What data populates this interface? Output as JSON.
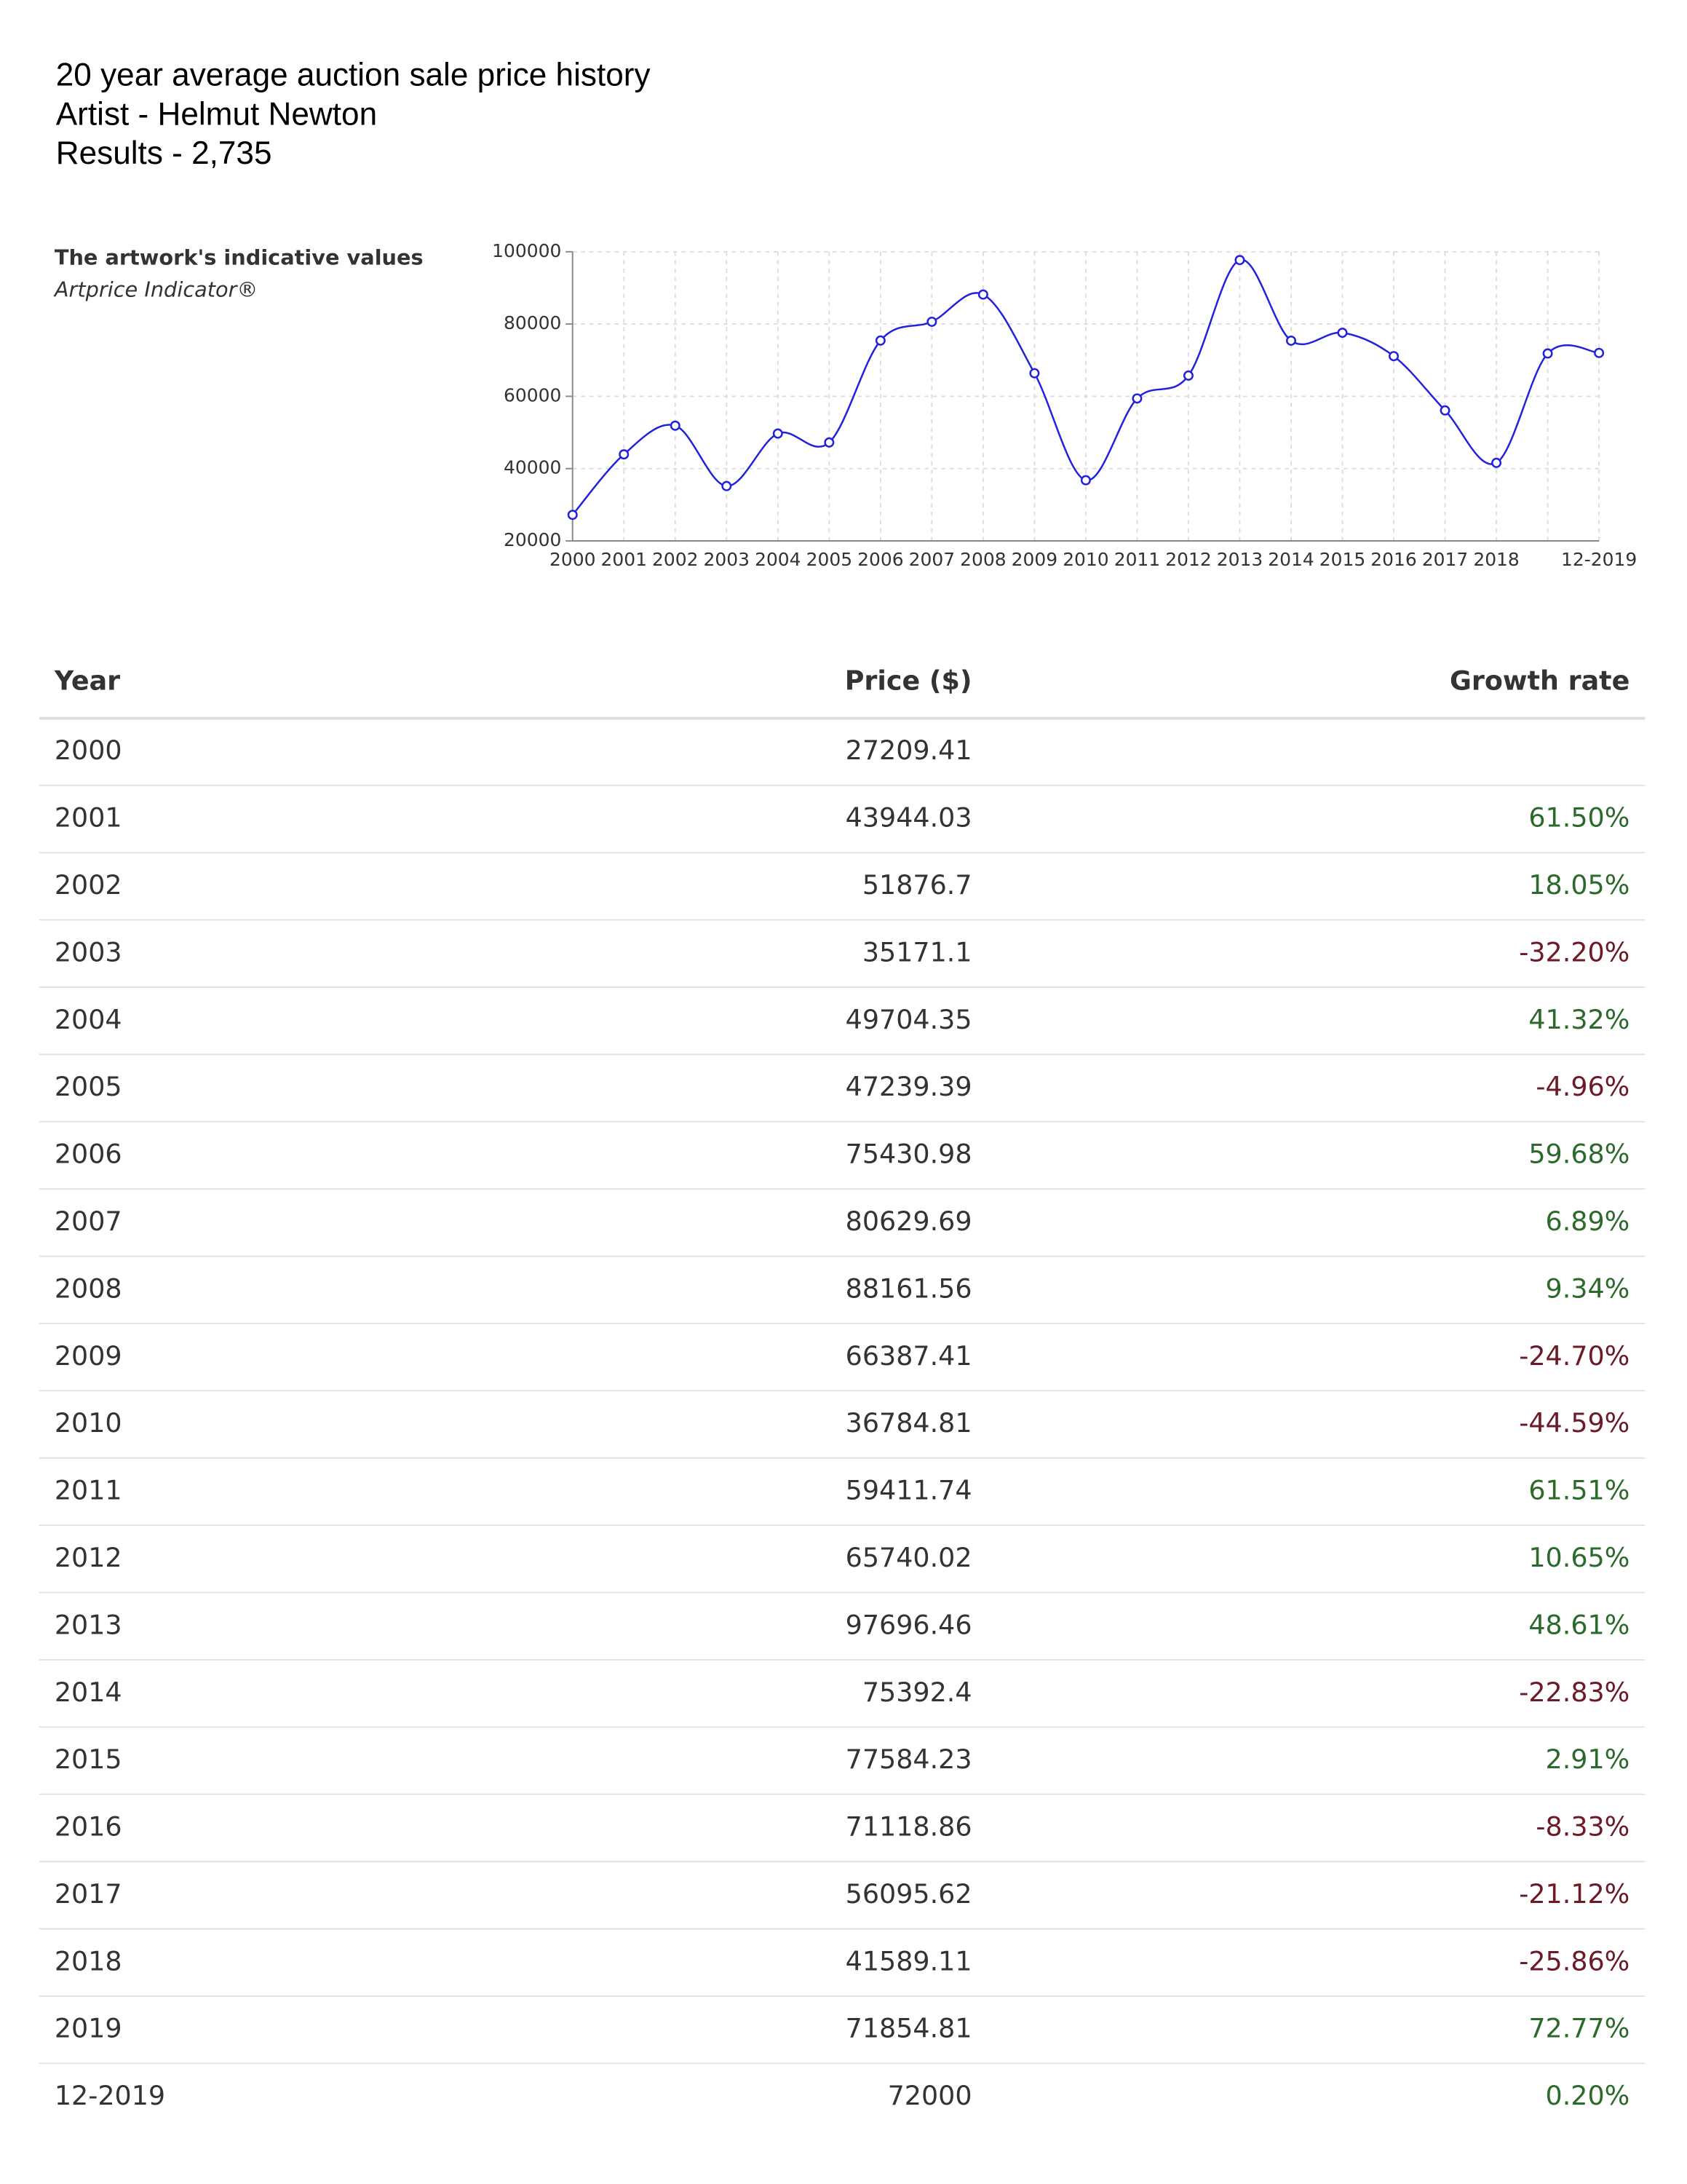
{
  "header": {
    "title": "20 year average auction sale price history",
    "artist": "Artist - Helmut Newton",
    "results": "Results - 2,735"
  },
  "chart_data": {
    "type": "line",
    "title": "The artwork's indicative values",
    "subtitle": "Artprice Indicator®",
    "categories": [
      "2000",
      "2001",
      "2002",
      "2003",
      "2004",
      "2005",
      "2006",
      "2007",
      "2008",
      "2009",
      "2010",
      "2011",
      "2012",
      "2013",
      "2014",
      "2015",
      "2016",
      "2017",
      "2018",
      null,
      "12-2019"
    ],
    "values": [
      27209.41,
      43944.03,
      51876.7,
      35171.1,
      49704.35,
      47239.39,
      75430.98,
      80629.69,
      88161.56,
      66387.41,
      36784.81,
      59411.74,
      65740.02,
      97696.46,
      75392.4,
      77584.23,
      71118.86,
      56095.62,
      41589.11,
      71854.81,
      72000
    ],
    "color": "#2222dd",
    "ylim": [
      20000,
      100000
    ],
    "yticks": [
      20000,
      40000,
      60000,
      80000,
      100000
    ],
    "grid": true
  },
  "table": {
    "columns": [
      "Year",
      "Price ($)",
      "Growth rate"
    ],
    "rows": [
      [
        "2000",
        "27209.41"
      ],
      [
        "2001",
        "43944.03",
        "61.50%"
      ],
      [
        "2002",
        "51876.7",
        "18.05%"
      ],
      [
        "2003",
        "35171.1",
        "-32.20%"
      ],
      [
        "2004",
        "49704.35",
        "41.32%"
      ],
      [
        "2005",
        "47239.39",
        "-4.96%"
      ],
      [
        "2006",
        "75430.98",
        "59.68%"
      ],
      [
        "2007",
        "80629.69",
        "6.89%"
      ],
      [
        "2008",
        "88161.56",
        "9.34%"
      ],
      [
        "2009",
        "66387.41",
        "-24.70%"
      ],
      [
        "2010",
        "36784.81",
        "-44.59%"
      ],
      [
        "2011",
        "59411.74",
        "61.51%"
      ],
      [
        "2012",
        "65740.02",
        "10.65%"
      ],
      [
        "2013",
        "97696.46",
        "48.61%"
      ],
      [
        "2014",
        "75392.4",
        "-22.83%"
      ],
      [
        "2015",
        "77584.23",
        "2.91%"
      ],
      [
        "2016",
        "71118.86",
        "-8.33%"
      ],
      [
        "2017",
        "56095.62",
        "-21.12%"
      ],
      [
        "2018",
        "41589.11",
        "-25.86%"
      ],
      [
        "2019",
        "71854.81",
        "72.77%"
      ],
      [
        "12-2019",
        "72000",
        "0.20%"
      ]
    ]
  }
}
